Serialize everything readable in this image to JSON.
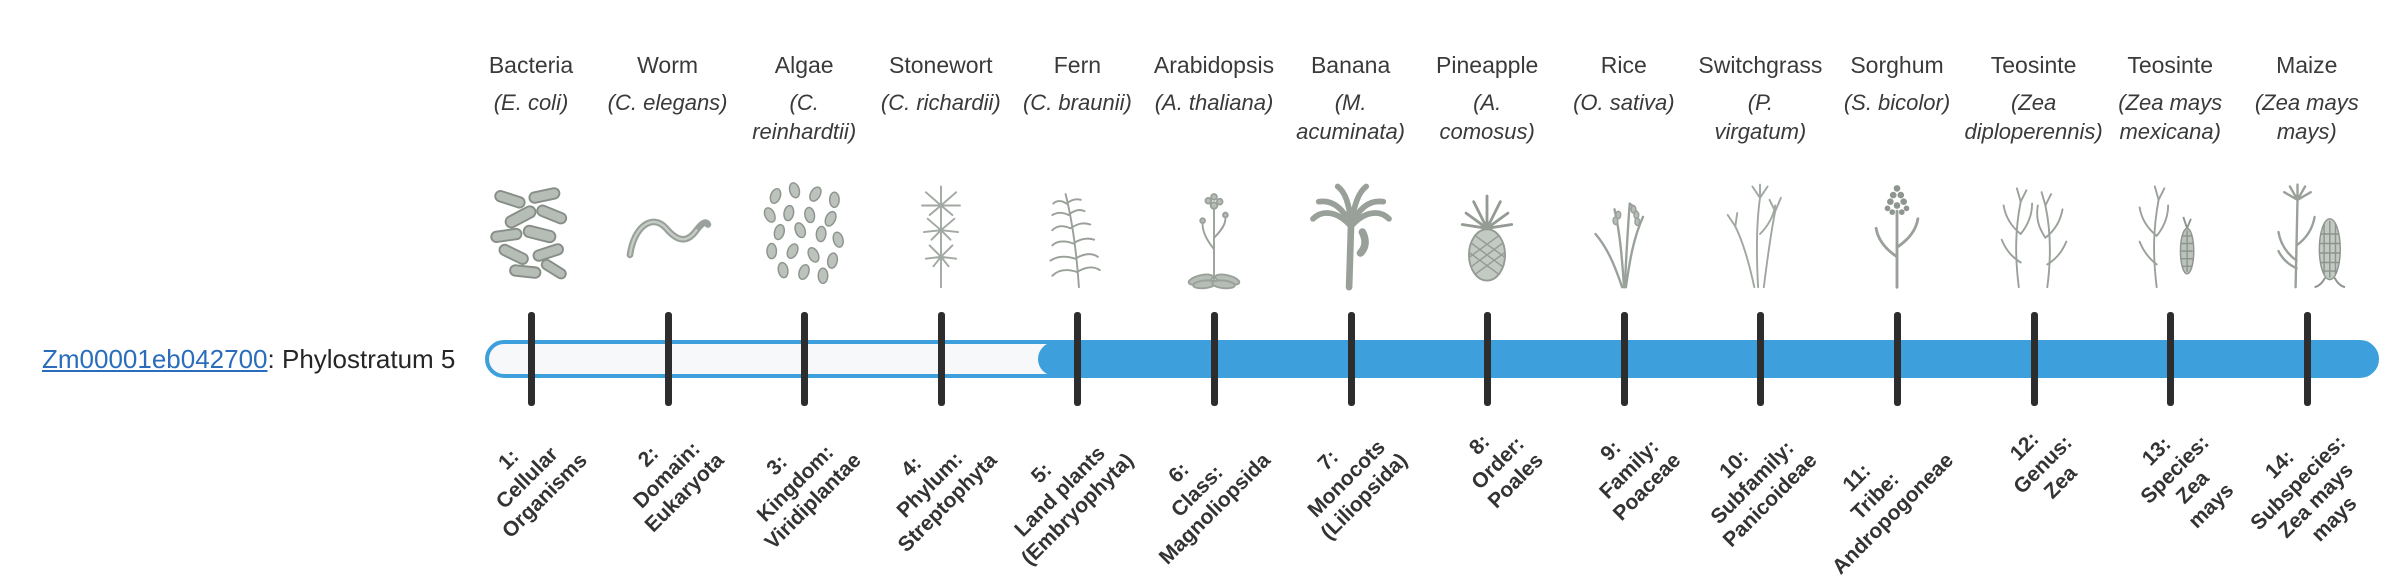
{
  "gene": {
    "id": "Zm00001eb042700",
    "suffix": ": Phylostratum 5",
    "link_color": "#2a6ebb",
    "phylostratum": 5
  },
  "timeline": {
    "bar_color": "#3da0dc",
    "bar_empty_color": "#f6f8f9",
    "tick_color": "#2d2d2d",
    "filled_from_stratum": 5,
    "total_strata": 14
  },
  "columns": [
    {
      "name": "Bacteria",
      "species": "(E. coli)",
      "icon": "bacteria-illustration",
      "stratum": "1:\nCellular\nOrganisms"
    },
    {
      "name": "Worm",
      "species": "(C. elegans)",
      "icon": "worm-illustration",
      "stratum": "2:\nDomain:\nEukaryota"
    },
    {
      "name": "Algae",
      "species": "(C.\nreinhardtii)",
      "icon": "algae-illustration",
      "stratum": "3:\nKingdom:\nViridiplantae"
    },
    {
      "name": "Stonewort",
      "species": "(C. richardii)",
      "icon": "stonewort-illustration",
      "stratum": "4:\nPhylum:\nStreptophyta"
    },
    {
      "name": "Fern",
      "species": "(C. braunii)",
      "icon": "fern-illustration",
      "stratum": "5:\nLand plants\n(Embryophyta)"
    },
    {
      "name": "Arabidopsis",
      "species": "(A. thaliana)",
      "icon": "arabidopsis-illustration",
      "stratum": "6:\nClass:\nMagnoliopsida"
    },
    {
      "name": "Banana",
      "species": "(M.\nacuminata)",
      "icon": "banana-illustration",
      "stratum": "7:\nMonocots\n(Liliopsida)"
    },
    {
      "name": "Pineapple",
      "species": "(A.\ncomosus)",
      "icon": "pineapple-illustration",
      "stratum": "8:\nOrder:\nPoales"
    },
    {
      "name": "Rice",
      "species": "(O. sativa)",
      "icon": "rice-illustration",
      "stratum": "9:\nFamily:\nPoaceae"
    },
    {
      "name": "Switchgrass",
      "species": "(P.\nvirgatum)",
      "icon": "switchgrass-illustration",
      "stratum": "10:\nSubfamily:\nPanicoideae"
    },
    {
      "name": "Sorghum",
      "species": "(S. bicolor)",
      "icon": "sorghum-illustration",
      "stratum": "11:\nTribe:\nAndropogoneae"
    },
    {
      "name": "Teosinte",
      "species": "(Zea\ndiploperennis)",
      "icon": "teosinte-illustration",
      "stratum": "12:\nGenus:\nZea"
    },
    {
      "name": "Teosinte",
      "species": "(Zea mays\nmexicana)",
      "icon": "teosinte-mexicana-illustration",
      "stratum": "13:\nSpecies:\nZea\nmays"
    },
    {
      "name": "Maize",
      "species": "(Zea mays\nmays)",
      "icon": "maize-illustration",
      "stratum": "14:\nSubspecies:\nZea mays\nmays"
    }
  ]
}
